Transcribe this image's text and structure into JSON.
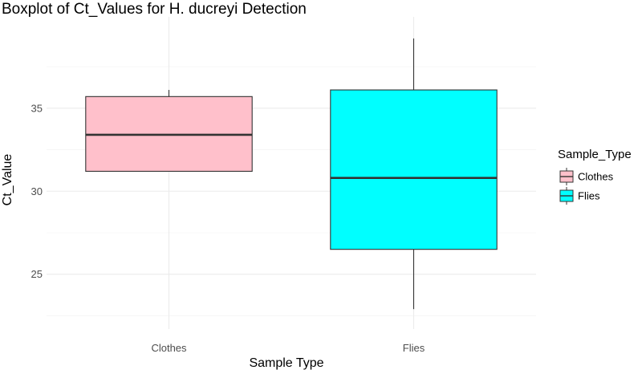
{
  "chart_data": {
    "type": "boxplot",
    "title": "Boxplot of Ct_Values for H. ducreyi Detection",
    "xlabel": "Sample Type",
    "ylabel": "Ct_Value",
    "categories": [
      "Clothes",
      "Flies"
    ],
    "ylim": [
      21.7,
      40.5
    ],
    "yticks": [
      25,
      30,
      35
    ],
    "grid": true,
    "boxes": [
      {
        "category": "Clothes",
        "whisker_low": 31.2,
        "q1": 31.2,
        "median": 33.4,
        "q3": 35.7,
        "whisker_high": 36.1,
        "fill": "#FFC0CB"
      },
      {
        "category": "Flies",
        "whisker_low": 22.9,
        "q1": 26.5,
        "median": 30.8,
        "q3": 36.1,
        "whisker_high": 39.2,
        "fill": "#00FFFF"
      }
    ],
    "legend": {
      "title": "Sample_Type",
      "position": "right",
      "entries": [
        {
          "label": "Clothes",
          "fill": "#FFC0CB"
        },
        {
          "label": "Flies",
          "fill": "#00FFFF"
        }
      ]
    }
  }
}
